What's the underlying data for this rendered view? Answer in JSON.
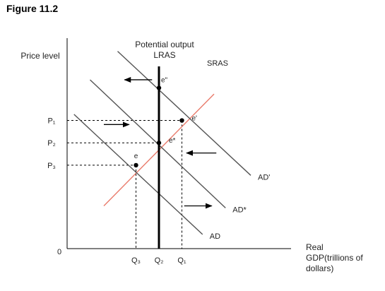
{
  "figure_label": "Figure 11.2",
  "chart_data": {
    "type": "line",
    "title": "",
    "xlabel": "Real GDP(trillions of dollars)",
    "xlabel_lines": [
      "Real",
      "GDP(trillions of",
      "dollars)"
    ],
    "ylabel": "Price level",
    "origin_label": "0",
    "xlim": [
      0,
      10
    ],
    "ylim": [
      0,
      10
    ],
    "x_ticks": [
      {
        "label": "Q₃",
        "value": 3.0
      },
      {
        "label": "Q₂",
        "value": 4.0
      },
      {
        "label": "Q₁",
        "value": 5.0
      }
    ],
    "y_ticks": [
      {
        "label": "P₁",
        "value": 6.3
      },
      {
        "label": "P₂",
        "value": 5.2
      },
      {
        "label": "P₃",
        "value": 4.1
      }
    ],
    "series": [
      {
        "name": "SRAS",
        "color": "#e97b6b",
        "points": [
          [
            1.6,
            2.1
          ],
          [
            6.4,
            7.6
          ]
        ]
      },
      {
        "name": "AD'",
        "color": "#555555",
        "points": [
          [
            2.2,
            9.7
          ],
          [
            8.0,
            3.6
          ]
        ]
      },
      {
        "name": "AD*",
        "color": "#555555",
        "points": [
          [
            1.0,
            8.3
          ],
          [
            6.9,
            2.0
          ]
        ]
      },
      {
        "name": "AD",
        "color": "#555555",
        "points": [
          [
            0.3,
            6.6
          ],
          [
            5.9,
            0.7
          ]
        ]
      }
    ],
    "vertical_line": {
      "label_lines": [
        "Potential output",
        "LRAS"
      ],
      "x": 4.0,
      "ylim": [
        0,
        10
      ],
      "color": "#000000"
    },
    "points": [
      {
        "label": "e\"",
        "x": 4.0,
        "y": 7.9
      },
      {
        "label": "e'",
        "x": 5.0,
        "y": 6.3
      },
      {
        "label": "e*",
        "x": 4.0,
        "y": 5.2
      },
      {
        "label": "e",
        "x": 3.0,
        "y": 4.1
      }
    ],
    "arrows": [
      {
        "direction": "left",
        "x_from": 3.7,
        "x_to": 2.5,
        "y": 8.3
      },
      {
        "direction": "right",
        "x_from": 1.6,
        "x_to": 2.7,
        "y": 6.1
      },
      {
        "direction": "left",
        "x_from": 6.5,
        "x_to": 5.2,
        "y": 4.7
      },
      {
        "direction": "right",
        "x_from": 5.1,
        "x_to": 6.3,
        "y": 2.1
      }
    ]
  }
}
